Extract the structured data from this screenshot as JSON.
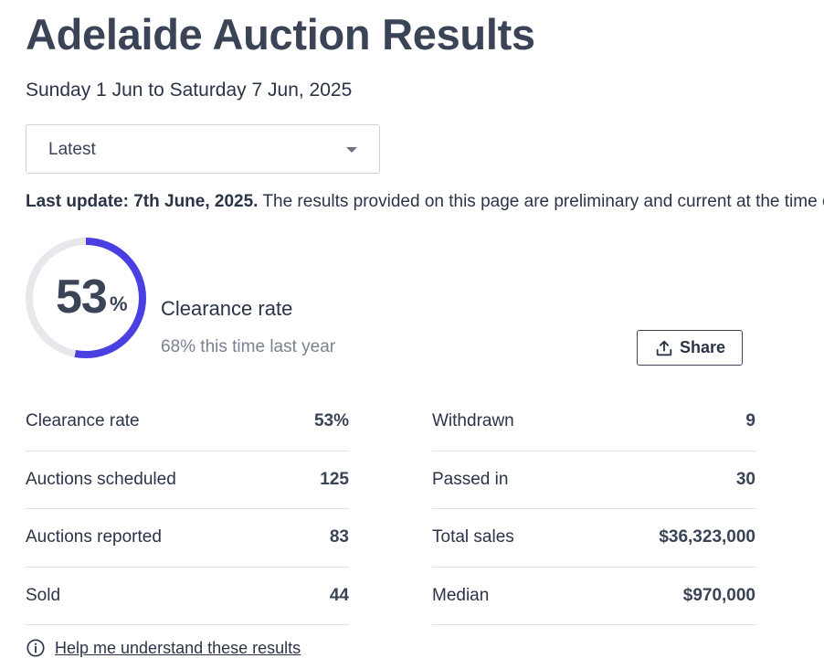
{
  "header": {
    "title": "Adelaide Auction Results",
    "date_range": "Sunday 1 Jun to Saturday 7 Jun, 2025"
  },
  "period_select": {
    "selected": "Latest"
  },
  "update": {
    "label": "Last update: 7th June, 2025.",
    "text": " The results provided on this page are preliminary and current at the time of publication."
  },
  "clearance": {
    "rate": "53",
    "rate_fraction": 0.53,
    "percent_sign": "%",
    "label": "Clearance rate",
    "compare": "68% this time last year",
    "accent_color": "#4a3fe0",
    "track_color": "#e6e8ec"
  },
  "share": {
    "label": "Share",
    "icon": "upload-share-icon"
  },
  "stats_left": [
    {
      "label": "Clearance rate",
      "value": "53%"
    },
    {
      "label": "Auctions scheduled",
      "value": "125"
    },
    {
      "label": "Auctions reported",
      "value": "83"
    },
    {
      "label": "Sold",
      "value": "44"
    }
  ],
  "stats_right": [
    {
      "label": "Withdrawn",
      "value": "9"
    },
    {
      "label": "Passed in",
      "value": "30"
    },
    {
      "label": "Total sales",
      "value": "$36,323,000"
    },
    {
      "label": "Median",
      "value": "$970,000"
    }
  ],
  "help": {
    "label": "Help me understand these results",
    "icon": "info-icon"
  }
}
